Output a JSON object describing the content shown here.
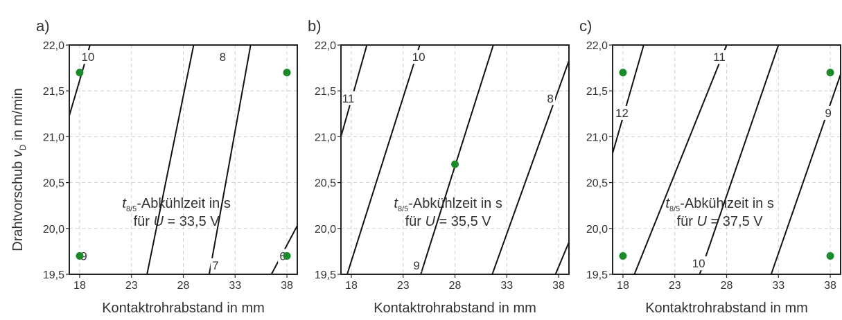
{
  "y_axis_label_prefix": "Drahtvorschub ",
  "y_axis_label_var": "v",
  "y_axis_label_sub": "D",
  "y_axis_label_suffix": " in m/min",
  "colors": {
    "contour": "#111111",
    "point": "#1b8a2a",
    "grid": "#cfcfcf",
    "text": "#333333"
  },
  "chart_data": [
    {
      "panel": "a)",
      "type": "contour",
      "xlabel": "Kontaktrohrabstand in mm",
      "xlim": [
        17,
        39
      ],
      "ylim": [
        19.5,
        22.0
      ],
      "x_ticks": [
        18,
        23,
        28,
        33,
        38
      ],
      "x_tick_labels": [
        "18",
        "23",
        "28",
        "33",
        "38"
      ],
      "y_ticks": [
        19.5,
        20.0,
        20.5,
        21.0,
        21.5,
        22.0
      ],
      "y_tick_labels": [
        "19,5",
        "20,0",
        "20,5",
        "21,0",
        "21,5",
        "22,0"
      ],
      "annotation_var": "t",
      "annotation_sub": "8/5",
      "annotation_line1": "-Abkühlzeit in s",
      "annotation_line2_prefix": "für ",
      "annotation_line2_var": "U",
      "annotation_line2_value": " = 33,5 V",
      "contours": [
        {
          "label": "",
          "x": [
            17.0,
            19.0
          ],
          "y": [
            21.23,
            22.0
          ],
          "label_at": null
        },
        {
          "label": "",
          "x": [
            24.5,
            29.0
          ],
          "y": [
            19.5,
            22.0
          ],
          "label_at": null
        },
        {
          "label": "",
          "x": [
            30.5,
            34.5
          ],
          "y": [
            19.5,
            22.0
          ],
          "label_at": null
        },
        {
          "label": "",
          "x": [
            36.5,
            39.0
          ],
          "y": [
            19.5,
            20.03
          ],
          "label_at": null
        }
      ],
      "contour_labels": [
        {
          "text": "10",
          "x": 18.8,
          "y": 21.87
        },
        {
          "text": "8",
          "x": 31.8,
          "y": 21.87
        },
        {
          "text": "9",
          "x": 18.4,
          "y": 19.7
        },
        {
          "text": "7",
          "x": 31.1,
          "y": 19.6
        },
        {
          "text": "6",
          "x": 37.6,
          "y": 19.7
        }
      ],
      "points": [
        {
          "x": 18,
          "y": 21.7
        },
        {
          "x": 38,
          "y": 21.7
        },
        {
          "x": 18,
          "y": 19.7
        },
        {
          "x": 38,
          "y": 19.7
        }
      ]
    },
    {
      "panel": "b)",
      "type": "contour",
      "xlabel": "Kontaktrohrabstand in mm",
      "xlim": [
        17,
        39
      ],
      "ylim": [
        19.5,
        22.0
      ],
      "x_ticks": [
        18,
        23,
        28,
        33,
        38
      ],
      "x_tick_labels": [
        "18",
        "23",
        "28",
        "33",
        "38"
      ],
      "y_ticks": [
        19.5,
        20.0,
        20.5,
        21.0,
        21.5,
        22.0
      ],
      "y_tick_labels": [
        "19,5",
        "20,0",
        "20,5",
        "21,0",
        "21,5",
        "22,0"
      ],
      "annotation_var": "t",
      "annotation_sub": "8/5",
      "annotation_line1": "-Abkühlzeit in s",
      "annotation_line2_prefix": "für ",
      "annotation_line2_var": "U",
      "annotation_line2_value": " = 35,5 V",
      "contours": [
        {
          "label": "",
          "x": [
            17.0,
            19.5
          ],
          "y": [
            21.0,
            22.0
          ],
          "label_at": null
        },
        {
          "label": "",
          "x": [
            17.6,
            24.6
          ],
          "y": [
            19.5,
            22.0
          ],
          "label_at": null
        },
        {
          "label": "",
          "x": [
            24.7,
            31.7
          ],
          "y": [
            19.5,
            22.0
          ],
          "label_at": null
        },
        {
          "label": "",
          "x": [
            31.6,
            39.0
          ],
          "y": [
            19.5,
            21.83
          ],
          "label_at": null
        },
        {
          "label": "",
          "x": [
            37.7,
            39.0
          ],
          "y": [
            19.5,
            19.85
          ],
          "label_at": null
        }
      ],
      "contour_labels": [
        {
          "text": "11",
          "x": 17.7,
          "y": 21.42
        },
        {
          "text": "10",
          "x": 24.5,
          "y": 21.87
        },
        {
          "text": "8",
          "x": 37.2,
          "y": 21.42
        },
        {
          "text": "9",
          "x": 24.3,
          "y": 19.6
        }
      ],
      "points": [
        {
          "x": 28,
          "y": 20.7
        }
      ]
    },
    {
      "panel": "c)",
      "type": "contour",
      "xlabel": "Kontaktrohrabstand in mm",
      "xlim": [
        17,
        39
      ],
      "ylim": [
        19.5,
        22.0
      ],
      "x_ticks": [
        18,
        23,
        28,
        33,
        38
      ],
      "x_tick_labels": [
        "18",
        "23",
        "28",
        "33",
        "38"
      ],
      "y_ticks": [
        19.5,
        20.0,
        20.5,
        21.0,
        21.5,
        22.0
      ],
      "y_tick_labels": [
        "19,5",
        "20,0",
        "20,5",
        "21,0",
        "21,5",
        "22,0"
      ],
      "annotation_var": "t",
      "annotation_sub": "8/5",
      "annotation_line1": "-Abkühlzeit in s",
      "annotation_line2_prefix": "für ",
      "annotation_line2_var": "U",
      "annotation_line2_value": " = 37,5 V",
      "contours": [
        {
          "label": "",
          "x": [
            17.0,
            20.0
          ],
          "y": [
            20.82,
            22.0
          ],
          "label_at": null
        },
        {
          "label": "",
          "x": [
            19.1,
            28.0
          ],
          "y": [
            19.5,
            22.0
          ],
          "label_at": null
        },
        {
          "label": "",
          "x": [
            25.4,
            33.0
          ],
          "y": [
            19.5,
            22.0
          ],
          "label_at": null
        },
        {
          "label": "",
          "x": [
            32.3,
            39.0
          ],
          "y": [
            19.5,
            21.68
          ],
          "label_at": null
        }
      ],
      "contour_labels": [
        {
          "text": "11",
          "x": 27.3,
          "y": 21.87
        },
        {
          "text": "12",
          "x": 17.9,
          "y": 21.26
        },
        {
          "text": "9",
          "x": 37.8,
          "y": 21.26
        },
        {
          "text": "10",
          "x": 25.3,
          "y": 19.62
        }
      ],
      "points": [
        {
          "x": 18,
          "y": 21.7
        },
        {
          "x": 38,
          "y": 21.7
        },
        {
          "x": 18,
          "y": 19.7
        },
        {
          "x": 38,
          "y": 19.7
        }
      ]
    }
  ]
}
